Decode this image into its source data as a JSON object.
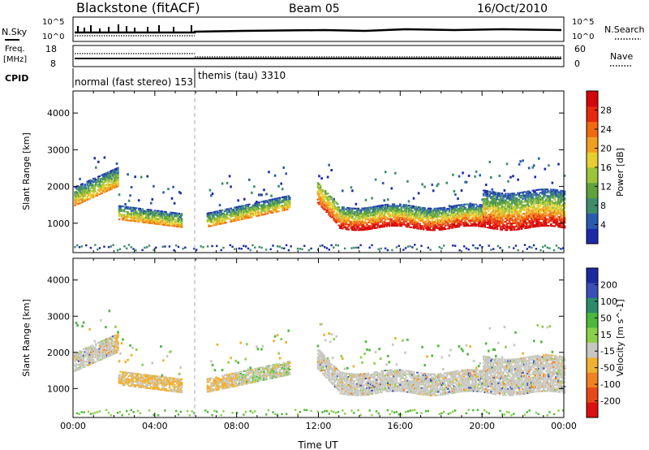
{
  "header": {
    "station": "Blackstone (fitACF)",
    "beam": "Beam 05",
    "date": "16/Oct/2010"
  },
  "top_panels": {
    "nsky_label": "N.Sky",
    "nsky_tick_hi": "10^5",
    "nsky_tick_lo": "10^0",
    "nsearch_label": "N.Search",
    "nsearch_tick_hi": "10^5",
    "nsearch_tick_lo": "10^0",
    "freq_label_1": "Freq.",
    "freq_label_2": "[MHz]",
    "freq_tick_hi": "18",
    "freq_tick_lo": "8",
    "nave_label": "Nave",
    "nave_tick_hi": "60",
    "nave_tick_lo": "0",
    "cpid_label": "CPID",
    "cpid_1": "normal (fast stereo) 153",
    "cpid_2": "themis (tau) 3310"
  },
  "chart_data": [
    {
      "type": "heatmap",
      "name": "power-panel",
      "xlabel": "",
      "ylabel": "Slant Range [km]",
      "x_range_hours": [
        0,
        24
      ],
      "ylim": [
        200,
        4600
      ],
      "yticks": [
        "1000",
        "2000",
        "3000",
        "4000"
      ],
      "colorbar": {
        "label": "Power [dB]",
        "ticks": [
          "4",
          "8",
          "12",
          "16",
          "20",
          "24",
          "28"
        ],
        "range": [
          0,
          30
        ],
        "colors": [
          "#1c2aa8",
          "#2a5ab0",
          "#3f8c6a",
          "#5fa23e",
          "#9cc43a",
          "#e6d030",
          "#f0a020",
          "#f06a10",
          "#e82810",
          "#d40808"
        ]
      },
      "regions": [
        {
          "t": [
            0.1,
            2.2
          ],
          "r": [
            1500,
            2500
          ],
          "level": "low-mid"
        },
        {
          "t": [
            2.0,
            5.3
          ],
          "r": [
            850,
            1650
          ],
          "level": "low-mid"
        },
        {
          "t": [
            6.5,
            10.6
          ],
          "r": [
            850,
            1750
          ],
          "level": "low-mid"
        },
        {
          "t": [
            11.9,
            23.9
          ],
          "r": [
            700,
            2200
          ],
          "level": "high"
        }
      ]
    },
    {
      "type": "heatmap",
      "name": "velocity-panel",
      "xlabel": "Time UT",
      "ylabel": "Slant Range [km]",
      "x_range_hours": [
        0,
        24
      ],
      "ylim": [
        200,
        4600
      ],
      "yticks": [
        "1000",
        "2000",
        "3000",
        "4000"
      ],
      "xticks": [
        "00:00",
        "04:00",
        "08:00",
        "12:00",
        "16:00",
        "20:00",
        "00:00"
      ],
      "colorbar": {
        "label": "Velocity [m s^-1]",
        "ticks": [
          "200",
          "100",
          "50",
          "15",
          "-15",
          "-50",
          "-100",
          "-200"
        ],
        "colors": [
          "#1a2aa0",
          "#3a4fb8",
          "#2c8c6a",
          "#4cb83c",
          "#8cd04a",
          "#c8c8c0",
          "#f0b030",
          "#f08020",
          "#e84818",
          "#dc1010"
        ]
      },
      "regions": [
        {
          "t": [
            0.1,
            2.2
          ],
          "r": [
            1500,
            2500
          ],
          "level": "ground"
        },
        {
          "t": [
            2.0,
            5.3
          ],
          "r": [
            850,
            1650
          ],
          "level": "negative"
        },
        {
          "t": [
            6.5,
            10.6
          ],
          "r": [
            850,
            1750
          ],
          "level": "mixed"
        },
        {
          "t": [
            11.9,
            23.9
          ],
          "r": [
            800,
            2200
          ],
          "level": "ground"
        }
      ]
    }
  ]
}
